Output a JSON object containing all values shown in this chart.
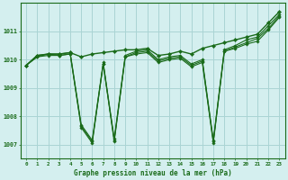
{
  "title": "Graphe pression niveau de la mer (hPa)",
  "background_color": "#d4efef",
  "grid_color": "#aad4d4",
  "line_color": "#1a6b1a",
  "marker_color": "#1a6b1a",
  "xlim": [
    -0.5,
    23.5
  ],
  "ylim": [
    1006.5,
    1012.0
  ],
  "yticks": [
    1007,
    1008,
    1009,
    1010,
    1011
  ],
  "xticks": [
    0,
    1,
    2,
    3,
    4,
    5,
    6,
    7,
    8,
    9,
    10,
    11,
    12,
    13,
    14,
    15,
    16,
    17,
    18,
    19,
    20,
    21,
    22,
    23
  ],
  "series": [
    [
      1009.8,
      1010.1,
      1010.2,
      1010.15,
      1010.2,
      1007.6,
      1007.05,
      1009.85,
      1007.1,
      1010.1,
      1010.2,
      1010.25,
      1009.9,
      1010.0,
      1010.05,
      1009.75,
      1009.9,
      1007.05,
      1010.3,
      1010.4,
      1010.55,
      1010.65,
      1011.05,
      1011.5
    ],
    [
      1009.8,
      1010.1,
      1010.15,
      1010.15,
      1010.2,
      1007.65,
      1007.1,
      1009.85,
      1007.15,
      1010.1,
      1010.25,
      1010.3,
      1009.95,
      1010.05,
      1010.1,
      1009.8,
      1009.95,
      1007.1,
      1010.3,
      1010.45,
      1010.6,
      1010.75,
      1011.1,
      1011.55
    ],
    [
      1009.8,
      1010.15,
      1010.2,
      1010.2,
      1010.25,
      1007.7,
      1007.15,
      1009.9,
      1007.2,
      1010.15,
      1010.3,
      1010.35,
      1010.0,
      1010.1,
      1010.15,
      1009.85,
      1010.0,
      1007.15,
      1010.35,
      1010.5,
      1010.7,
      1010.8,
      1011.2,
      1011.6
    ],
    [
      1009.8,
      1010.15,
      1010.2,
      1010.2,
      1010.25,
      1010.1,
      1010.2,
      1010.25,
      1010.3,
      1010.35,
      1010.35,
      1010.4,
      1010.15,
      1010.2,
      1010.3,
      1010.2,
      1010.4,
      1010.5,
      1010.6,
      1010.7,
      1010.8,
      1010.9,
      1011.3,
      1011.7
    ]
  ]
}
